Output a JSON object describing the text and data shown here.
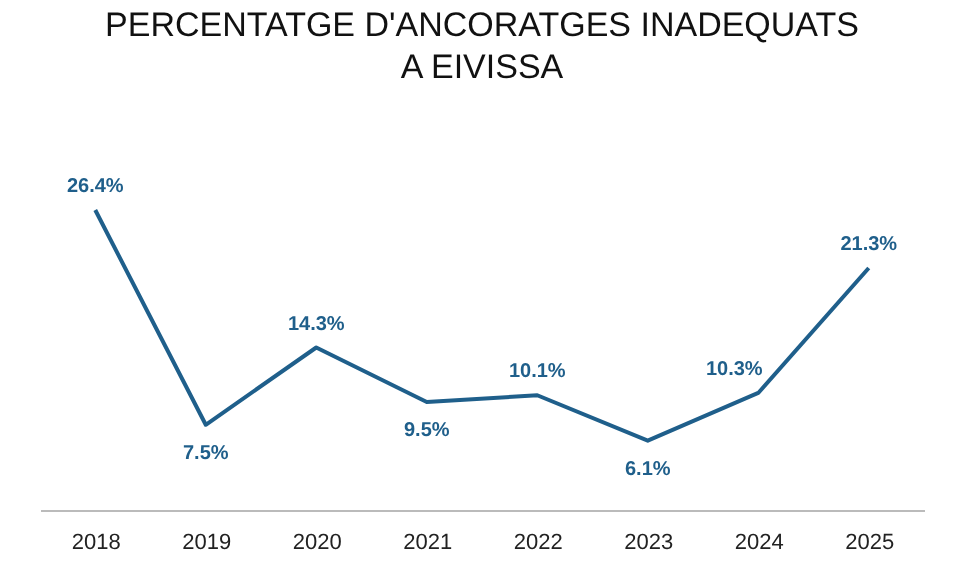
{
  "chart_data": {
    "type": "line",
    "title": "PERCENTATGE D'ANCORATGES INADEQUATS\nA EIVISSA",
    "categories": [
      "2018",
      "2019",
      "2020",
      "2021",
      "2022",
      "2023",
      "2024",
      "2025"
    ],
    "values": [
      26.4,
      7.5,
      14.3,
      9.5,
      10.1,
      6.1,
      10.3,
      21.3
    ],
    "color": "#1f5f8b",
    "value_labels": [
      "26.4%",
      "7.5%",
      "14.3%",
      "9.5%",
      "10.1%",
      "6.1%",
      "10.3%",
      "21.3%"
    ],
    "marker": "none",
    "tick_labels": "x"
  }
}
